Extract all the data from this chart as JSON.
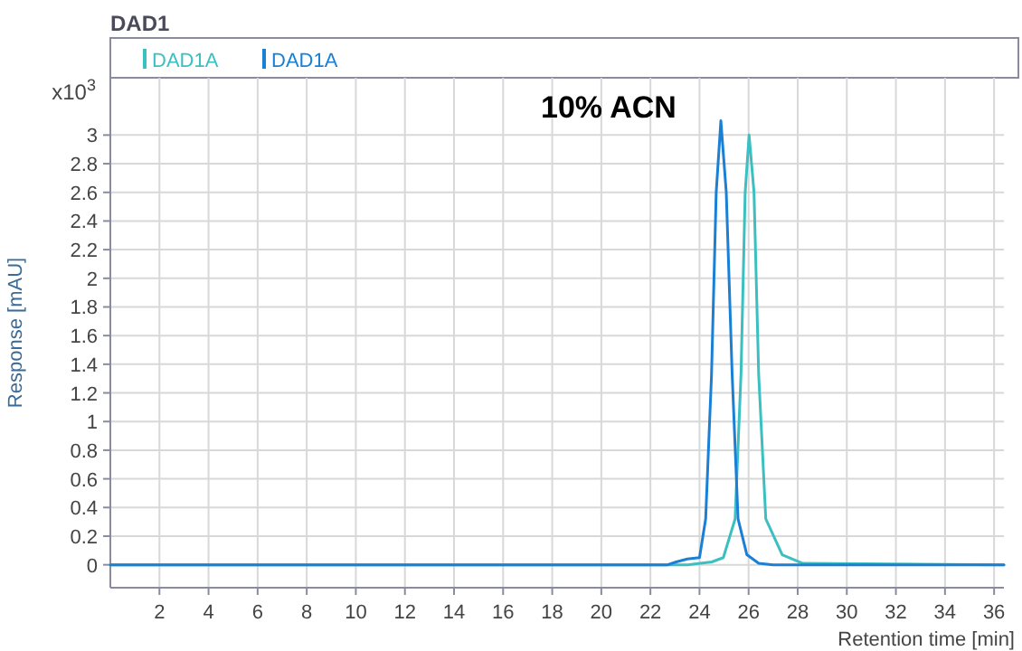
{
  "chart_data": {
    "type": "line",
    "title": "DAD1",
    "xlabel": "Retention time [min]",
    "ylabel": "Response [mAU]",
    "annotations": [
      "x10$^{3}$",
      "10% ACN"
    ],
    "series": [
      {
        "name": "DAD1A",
        "color": "#3cbfc0",
        "x": [
          0,
          23.53,
          24.5,
          24.97,
          25.45,
          25.69,
          25.86,
          26.02,
          26.22,
          26.41,
          26.7,
          27.37,
          28.21,
          36.4
        ],
        "values": [
          0,
          0,
          0.02,
          0.05,
          0.32,
          1.33,
          2.6,
          3.0,
          2.6,
          1.33,
          0.32,
          0.07,
          0.01,
          0
        ]
      },
      {
        "name": "DAD1A",
        "color": "#1a80d6",
        "x": [
          0,
          22.7,
          23.05,
          23.5,
          24.0,
          24.25,
          24.49,
          24.68,
          24.87,
          25.09,
          25.33,
          25.57,
          25.93,
          26.41,
          27,
          36.4
        ],
        "values": [
          0,
          0,
          0.02,
          0.04,
          0.05,
          0.32,
          1.33,
          2.6,
          3.1,
          2.6,
          1.33,
          0.32,
          0.07,
          0.01,
          0,
          0
        ]
      }
    ],
    "xlim": [
      0,
      36.4
    ],
    "xticks": [
      2,
      4,
      6,
      8,
      10,
      12,
      14,
      16,
      18,
      20,
      22,
      24,
      26,
      28,
      30,
      32,
      34,
      36
    ],
    "ylim": [
      -0.16,
      3.4
    ],
    "yticks": [
      0,
      0.2,
      0.4,
      0.6,
      0.8,
      1,
      1.2,
      1.4,
      1.6,
      1.8,
      2,
      2.2,
      2.4,
      2.6,
      2.8,
      3
    ],
    "grid": true,
    "legend": "top",
    "marker": "none",
    "line_style": "solid"
  }
}
